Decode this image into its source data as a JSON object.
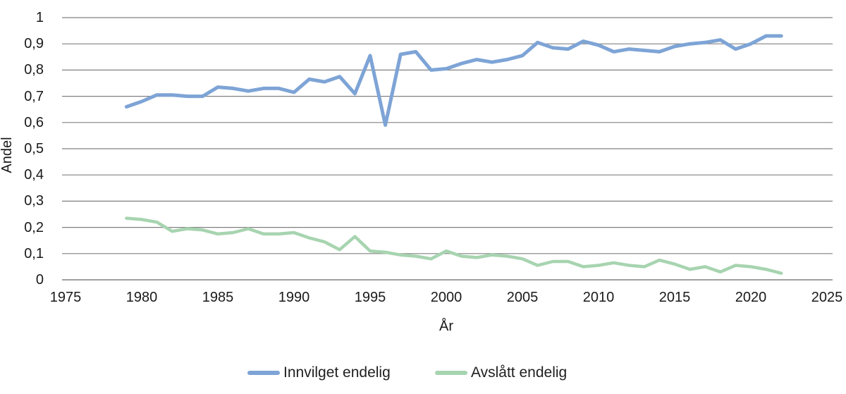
{
  "chart_data": {
    "type": "line",
    "title": "",
    "xlabel": "År",
    "ylabel": "Andel",
    "xlim": [
      1975,
      2025
    ],
    "ylim": [
      0,
      1
    ],
    "grid": "horizontal-only",
    "legend_position": "bottom-center",
    "x_ticks": [
      1975,
      1980,
      1985,
      1990,
      1995,
      2000,
      2005,
      2010,
      2015,
      2020,
      2025
    ],
    "y_ticks": [
      {
        "value": 0.0,
        "label": "0"
      },
      {
        "value": 0.1,
        "label": "0,1"
      },
      {
        "value": 0.2,
        "label": "0,2"
      },
      {
        "value": 0.3,
        "label": "0,3"
      },
      {
        "value": 0.4,
        "label": "0,4"
      },
      {
        "value": 0.5,
        "label": "0,5"
      },
      {
        "value": 0.6,
        "label": "0,6"
      },
      {
        "value": 0.7,
        "label": "0,7"
      },
      {
        "value": 0.8,
        "label": "0,8"
      },
      {
        "value": 0.9,
        "label": "0,9"
      },
      {
        "value": 1.0,
        "label": "1"
      }
    ],
    "x": [
      1979,
      1980,
      1981,
      1982,
      1983,
      1984,
      1985,
      1986,
      1987,
      1988,
      1989,
      1990,
      1991,
      1992,
      1993,
      1994,
      1995,
      1996,
      1997,
      1998,
      1999,
      2000,
      2001,
      2002,
      2003,
      2004,
      2005,
      2006,
      2007,
      2008,
      2009,
      2010,
      2011,
      2012,
      2013,
      2014,
      2015,
      2016,
      2017,
      2018,
      2019,
      2020,
      2021,
      2022
    ],
    "series": [
      {
        "name": "Innvilget endelig",
        "color": "#7EA4D6",
        "stroke_width": 5,
        "values": [
          0.66,
          0.68,
          0.705,
          0.705,
          0.7,
          0.7,
          0.735,
          0.73,
          0.72,
          0.73,
          0.73,
          0.715,
          0.765,
          0.755,
          0.775,
          0.71,
          0.855,
          0.59,
          0.86,
          0.87,
          0.8,
          0.805,
          0.825,
          0.84,
          0.83,
          0.84,
          0.855,
          0.905,
          0.885,
          0.88,
          0.91,
          0.895,
          0.87,
          0.88,
          0.875,
          0.87,
          0.89,
          0.9,
          0.905,
          0.915,
          0.88,
          0.9,
          0.93,
          0.93
        ]
      },
      {
        "name": "Avslått endelig",
        "color": "#A7D4B0",
        "stroke_width": 4.5,
        "values": [
          0.235,
          0.23,
          0.22,
          0.185,
          0.195,
          0.19,
          0.175,
          0.18,
          0.195,
          0.175,
          0.175,
          0.18,
          0.16,
          0.145,
          0.115,
          0.165,
          0.11,
          0.105,
          0.095,
          0.09,
          0.08,
          0.11,
          0.09,
          0.085,
          0.095,
          0.09,
          0.08,
          0.055,
          0.07,
          0.07,
          0.05,
          0.055,
          0.065,
          0.055,
          0.05,
          0.075,
          0.06,
          0.04,
          0.05,
          0.03,
          0.055,
          0.05,
          0.04,
          0.025
        ]
      }
    ],
    "grid_color": "#808080",
    "axis_line_color": "#a0a0a0"
  }
}
